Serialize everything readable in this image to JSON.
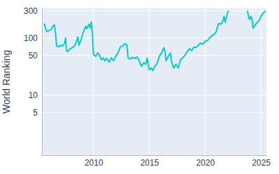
{
  "chart_data": {
    "type": "line",
    "y_label": "World Ranking",
    "log": "y",
    "grid": true,
    "color": "#00ced1",
    "x": [
      2005.6,
      2005.7,
      2005.8,
      2006.0,
      2006.2,
      2006.4,
      2006.5,
      2006.6,
      2006.7,
      2006.9,
      2007.0,
      2007.2,
      2007.4,
      2007.5,
      2007.6,
      2007.7,
      2007.9,
      2008.1,
      2008.3,
      2008.5,
      2008.6,
      2008.7,
      2008.9,
      2009.1,
      2009.3,
      2009.4,
      2009.6,
      2009.7,
      2009.8,
      2009.9,
      2010.0,
      2010.2,
      2010.4,
      2010.5,
      2010.7,
      2010.9,
      2011.0,
      2011.2,
      2011.4,
      2011.6,
      2011.8,
      2012.0,
      2012.2,
      2012.4,
      2012.6,
      2012.8,
      2013.0,
      2013.1,
      2013.3,
      2013.5,
      2013.7,
      2013.9,
      2014.1,
      2014.3,
      2014.5,
      2014.7,
      2014.8,
      2015.0,
      2015.2,
      2015.3,
      2015.5,
      2015.7,
      2015.9,
      2016.1,
      2016.3,
      2016.4,
      2016.5,
      2016.7,
      2016.9,
      2017.0,
      2017.2,
      2017.4,
      2017.6,
      2017.8,
      2018.0,
      2018.2,
      2018.4,
      2018.6,
      2018.8,
      2019.0,
      2019.2,
      2019.4,
      2019.6,
      2019.8,
      2020.0,
      2020.2,
      2020.4,
      2020.6,
      2020.8,
      2021.0,
      2021.2,
      2021.4,
      2021.6,
      2021.7,
      2021.8,
      2022.0,
      2022.1,
      2022.2,
      2023.8,
      2023.9,
      2024.0,
      2024.1,
      2024.2,
      2024.3,
      2024.5,
      2024.7,
      2024.9,
      2025.0,
      2025.2,
      2025.4
    ],
    "values": [
      180,
      150,
      130,
      135,
      140,
      165,
      170,
      120,
      72,
      70,
      75,
      72,
      80,
      100,
      60,
      58,
      65,
      68,
      72,
      90,
      105,
      75,
      95,
      130,
      160,
      145,
      175,
      150,
      190,
      120,
      52,
      48,
      55,
      52,
      42,
      45,
      40,
      44,
      38,
      45,
      40,
      48,
      55,
      70,
      72,
      80,
      75,
      45,
      43,
      46,
      44,
      47,
      40,
      32,
      37,
      35,
      45,
      28,
      30,
      27,
      32,
      36,
      48,
      55,
      68,
      60,
      40,
      48,
      55,
      38,
      30,
      35,
      30,
      42,
      45,
      50,
      58,
      65,
      60,
      70,
      68,
      75,
      82,
      78,
      88,
      90,
      100,
      110,
      115,
      130,
      180,
      175,
      200,
      240,
      190,
      270,
      300,
      null,
      300,
      230,
      210,
      240,
      220,
      150,
      170,
      190,
      210,
      240,
      270,
      300
    ],
    "xlim": [
      2005.375,
      2025.5
    ],
    "xticks": [
      2010,
      2015,
      2020,
      2025
    ],
    "ylim": [
      0.9,
      330
    ],
    "yticks": [
      5,
      10,
      50,
      100,
      300
    ]
  }
}
